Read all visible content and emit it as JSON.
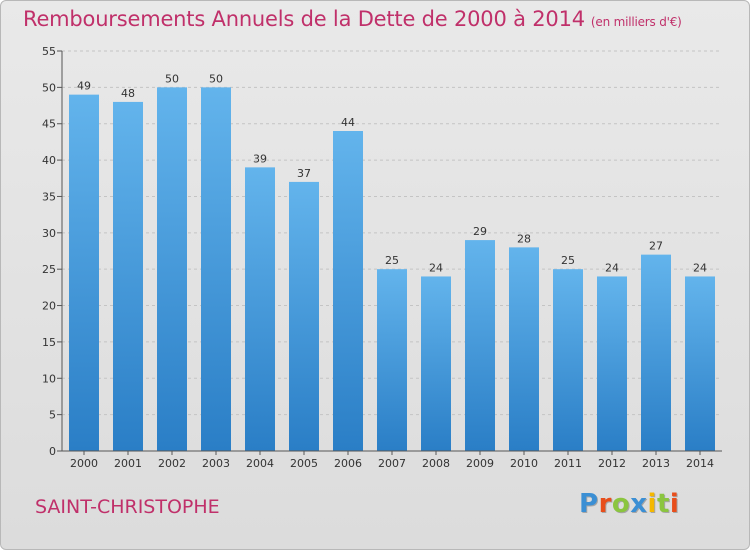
{
  "header": {
    "title": "Remboursements Annuels de la Dette de 2000 à 2014",
    "subtitle": "(en milliers d'€)"
  },
  "footer": {
    "city": "SAINT-CHRISTOPHE",
    "logo": "Proxiti",
    "logo_colors": [
      "#3b8fd4",
      "#e84e1b",
      "#8bc53f",
      "#3b8fd4",
      "#f5b800",
      "#8bc53f",
      "#e84e1b"
    ]
  },
  "colors": {
    "title": "#c0306a",
    "bar_top": "#63b4ec",
    "bar_bottom": "#2a7ec6",
    "grid": "#c4c4c4",
    "background": "#e3e3e3"
  },
  "chart_data": {
    "type": "bar",
    "categories": [
      "2000",
      "2001",
      "2002",
      "2003",
      "2004",
      "2005",
      "2006",
      "2007",
      "2008",
      "2009",
      "2010",
      "2011",
      "2012",
      "2013",
      "2014"
    ],
    "values": [
      49,
      48,
      50,
      50,
      39,
      37,
      44,
      25,
      24,
      29,
      28,
      25,
      24,
      27,
      24
    ],
    "ylim": [
      0,
      55
    ],
    "yticks": [
      0,
      5,
      10,
      15,
      20,
      25,
      30,
      35,
      40,
      45,
      50,
      55
    ],
    "grid": true,
    "data_labels": true
  }
}
